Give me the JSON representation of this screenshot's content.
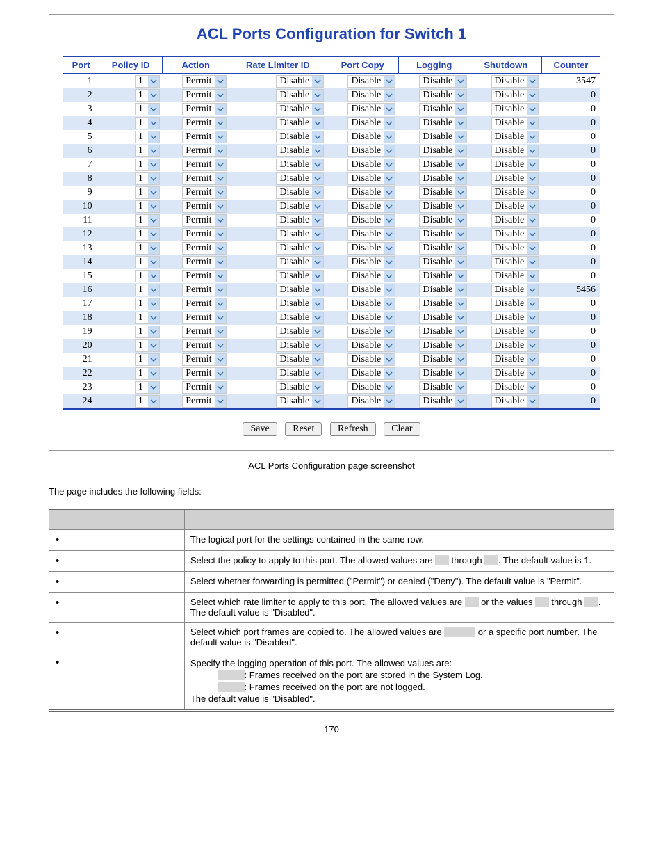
{
  "title": "ACL Ports Configuration for Switch 1",
  "headers": [
    "Port",
    "Policy ID",
    "Action",
    "Rate Limiter ID",
    "Port Copy",
    "Logging",
    "Shutdown",
    "Counter"
  ],
  "rows": [
    {
      "port": "1",
      "policy": "1",
      "action": "Permit",
      "rate": "Disable",
      "copy": "Disable",
      "log": "Disable",
      "shut": "Disable",
      "counter": "3547"
    },
    {
      "port": "2",
      "policy": "1",
      "action": "Permit",
      "rate": "Disable",
      "copy": "Disable",
      "log": "Disable",
      "shut": "Disable",
      "counter": "0"
    },
    {
      "port": "3",
      "policy": "1",
      "action": "Permit",
      "rate": "Disable",
      "copy": "Disable",
      "log": "Disable",
      "shut": "Disable",
      "counter": "0"
    },
    {
      "port": "4",
      "policy": "1",
      "action": "Permit",
      "rate": "Disable",
      "copy": "Disable",
      "log": "Disable",
      "shut": "Disable",
      "counter": "0"
    },
    {
      "port": "5",
      "policy": "1",
      "action": "Permit",
      "rate": "Disable",
      "copy": "Disable",
      "log": "Disable",
      "shut": "Disable",
      "counter": "0"
    },
    {
      "port": "6",
      "policy": "1",
      "action": "Permit",
      "rate": "Disable",
      "copy": "Disable",
      "log": "Disable",
      "shut": "Disable",
      "counter": "0"
    },
    {
      "port": "7",
      "policy": "1",
      "action": "Permit",
      "rate": "Disable",
      "copy": "Disable",
      "log": "Disable",
      "shut": "Disable",
      "counter": "0"
    },
    {
      "port": "8",
      "policy": "1",
      "action": "Permit",
      "rate": "Disable",
      "copy": "Disable",
      "log": "Disable",
      "shut": "Disable",
      "counter": "0"
    },
    {
      "port": "9",
      "policy": "1",
      "action": "Permit",
      "rate": "Disable",
      "copy": "Disable",
      "log": "Disable",
      "shut": "Disable",
      "counter": "0"
    },
    {
      "port": "10",
      "policy": "1",
      "action": "Permit",
      "rate": "Disable",
      "copy": "Disable",
      "log": "Disable",
      "shut": "Disable",
      "counter": "0"
    },
    {
      "port": "11",
      "policy": "1",
      "action": "Permit",
      "rate": "Disable",
      "copy": "Disable",
      "log": "Disable",
      "shut": "Disable",
      "counter": "0"
    },
    {
      "port": "12",
      "policy": "1",
      "action": "Permit",
      "rate": "Disable",
      "copy": "Disable",
      "log": "Disable",
      "shut": "Disable",
      "counter": "0"
    },
    {
      "port": "13",
      "policy": "1",
      "action": "Permit",
      "rate": "Disable",
      "copy": "Disable",
      "log": "Disable",
      "shut": "Disable",
      "counter": "0"
    },
    {
      "port": "14",
      "policy": "1",
      "action": "Permit",
      "rate": "Disable",
      "copy": "Disable",
      "log": "Disable",
      "shut": "Disable",
      "counter": "0"
    },
    {
      "port": "15",
      "policy": "1",
      "action": "Permit",
      "rate": "Disable",
      "copy": "Disable",
      "log": "Disable",
      "shut": "Disable",
      "counter": "0"
    },
    {
      "port": "16",
      "policy": "1",
      "action": "Permit",
      "rate": "Disable",
      "copy": "Disable",
      "log": "Disable",
      "shut": "Disable",
      "counter": "5456"
    },
    {
      "port": "17",
      "policy": "1",
      "action": "Permit",
      "rate": "Disable",
      "copy": "Disable",
      "log": "Disable",
      "shut": "Disable",
      "counter": "0"
    },
    {
      "port": "18",
      "policy": "1",
      "action": "Permit",
      "rate": "Disable",
      "copy": "Disable",
      "log": "Disable",
      "shut": "Disable",
      "counter": "0"
    },
    {
      "port": "19",
      "policy": "1",
      "action": "Permit",
      "rate": "Disable",
      "copy": "Disable",
      "log": "Disable",
      "shut": "Disable",
      "counter": "0"
    },
    {
      "port": "20",
      "policy": "1",
      "action": "Permit",
      "rate": "Disable",
      "copy": "Disable",
      "log": "Disable",
      "shut": "Disable",
      "counter": "0"
    },
    {
      "port": "21",
      "policy": "1",
      "action": "Permit",
      "rate": "Disable",
      "copy": "Disable",
      "log": "Disable",
      "shut": "Disable",
      "counter": "0"
    },
    {
      "port": "22",
      "policy": "1",
      "action": "Permit",
      "rate": "Disable",
      "copy": "Disable",
      "log": "Disable",
      "shut": "Disable",
      "counter": "0"
    },
    {
      "port": "23",
      "policy": "1",
      "action": "Permit",
      "rate": "Disable",
      "copy": "Disable",
      "log": "Disable",
      "shut": "Disable",
      "counter": "0"
    },
    {
      "port": "24",
      "policy": "1",
      "action": "Permit",
      "rate": "Disable",
      "copy": "Disable",
      "log": "Disable",
      "shut": "Disable",
      "counter": "0"
    }
  ],
  "buttons": {
    "save": "Save",
    "reset": "Reset",
    "refresh": "Refresh",
    "clear": "Clear"
  },
  "caption": "ACL Ports Configuration page screenshot",
  "intro": "The page includes the following fields:",
  "fields": [
    {
      "desc_parts": [
        {
          "t": "The logical port for the settings contained in the same row."
        }
      ]
    },
    {
      "desc_parts": [
        {
          "t": "Select the policy to apply to this port. The allowed values are "
        },
        {
          "hl": " "
        },
        {
          "t": " through "
        },
        {
          "hl": " "
        },
        {
          "t": ". The default value is 1."
        }
      ]
    },
    {
      "desc_parts": [
        {
          "t": "Select whether forwarding is permitted (\"Permit\") or denied (\"Deny\"). The default value is \"Permit\"."
        }
      ]
    },
    {
      "desc_parts": [
        {
          "t": "Select which rate limiter to apply to this port. The allowed values are "
        },
        {
          "hl": " "
        },
        {
          "t": " or the values "
        },
        {
          "hl": " "
        },
        {
          "t": " through "
        },
        {
          "hl": " "
        },
        {
          "t": ". The default value is \"Disabled\"."
        }
      ]
    },
    {
      "desc_parts": [
        {
          "t": "Select which port frames are copied to. The allowed values are "
        },
        {
          "hl": "        "
        },
        {
          "t": " or a specific port number. The default value is \"Disabled\"."
        }
      ]
    },
    {
      "desc_lines": [
        [
          {
            "t": "Specify the logging operation of this port. The allowed values are:"
          }
        ],
        [
          {
            "hl": "      "
          },
          {
            "t": ": Frames received on the port are stored in the System Log."
          }
        ],
        [
          {
            "hl": "      "
          },
          {
            "t": ": Frames received on the port are not logged."
          }
        ],
        [
          {
            "t": "The default value is \"Disabled\"."
          }
        ]
      ]
    }
  ],
  "pagenum": "170",
  "colors": {
    "themeBlue": "#2244b0",
    "rowAlt": "#dbe7f6",
    "ddArrowBg": "#c8ddf3",
    "arrowStroke": "#3a6fb0",
    "highlight": "#d6d6d6"
  }
}
